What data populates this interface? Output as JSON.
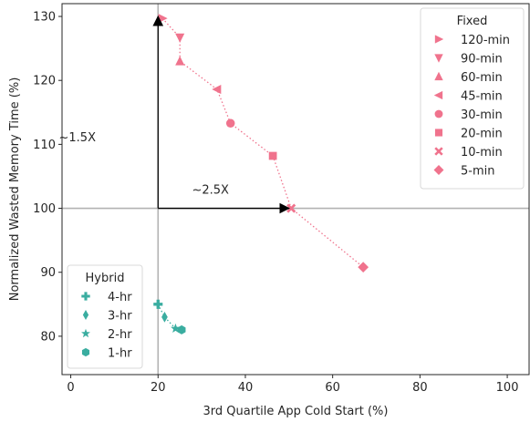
{
  "chart_data": {
    "type": "scatter",
    "xlabel": "3rd Quartile App Cold Start (%)",
    "ylabel": "Normalized Wasted Memory Time (%)",
    "xlim": [
      -2,
      105
    ],
    "ylim": [
      74,
      132
    ],
    "x_ticks": [
      0,
      20,
      40,
      60,
      80,
      100
    ],
    "y_ticks": [
      80,
      90,
      100,
      110,
      120,
      130
    ],
    "reference_lines": {
      "x": 20,
      "y": 100
    },
    "groups": [
      {
        "name": "Fixed",
        "color": "#f0738d",
        "legend_position": "top-right",
        "connected": true,
        "points": [
          {
            "label": "120-min",
            "marker": "triangle-right",
            "x": 21.0,
            "y": 129.7
          },
          {
            "label": "90-min",
            "marker": "triangle-down",
            "x": 25.0,
            "y": 126.7
          },
          {
            "label": "60-min",
            "marker": "triangle-up",
            "x": 25.0,
            "y": 123.0
          },
          {
            "label": "45-min",
            "marker": "triangle-left",
            "x": 33.5,
            "y": 118.6
          },
          {
            "label": "30-min",
            "marker": "circle",
            "x": 36.6,
            "y": 113.3
          },
          {
            "label": "20-min",
            "marker": "square",
            "x": 46.3,
            "y": 108.2
          },
          {
            "label": "10-min",
            "marker": "x",
            "x": 50.5,
            "y": 100.0
          },
          {
            "label": "5-min",
            "marker": "diamond",
            "x": 67.0,
            "y": 90.8
          }
        ]
      },
      {
        "name": "Hybrid",
        "color": "#3aada0",
        "legend_position": "bottom-left",
        "connected": true,
        "points": [
          {
            "label": "4-hr",
            "marker": "plus",
            "x": 20.0,
            "y": 85.0
          },
          {
            "label": "3-hr",
            "marker": "thin-diamond",
            "x": 21.5,
            "y": 83.0
          },
          {
            "label": "2-hr",
            "marker": "star",
            "x": 24.0,
            "y": 81.2
          },
          {
            "label": "1-hr",
            "marker": "hexagon",
            "x": 25.4,
            "y": 81.0
          }
        ]
      }
    ],
    "annotations": [
      {
        "text": "~1.5X",
        "arrow_from": [
          20,
          100
        ],
        "arrow_to": [
          20,
          130
        ]
      },
      {
        "text": "~2.5X",
        "arrow_from": [
          20,
          100
        ],
        "arrow_to": [
          50,
          100
        ]
      }
    ]
  }
}
